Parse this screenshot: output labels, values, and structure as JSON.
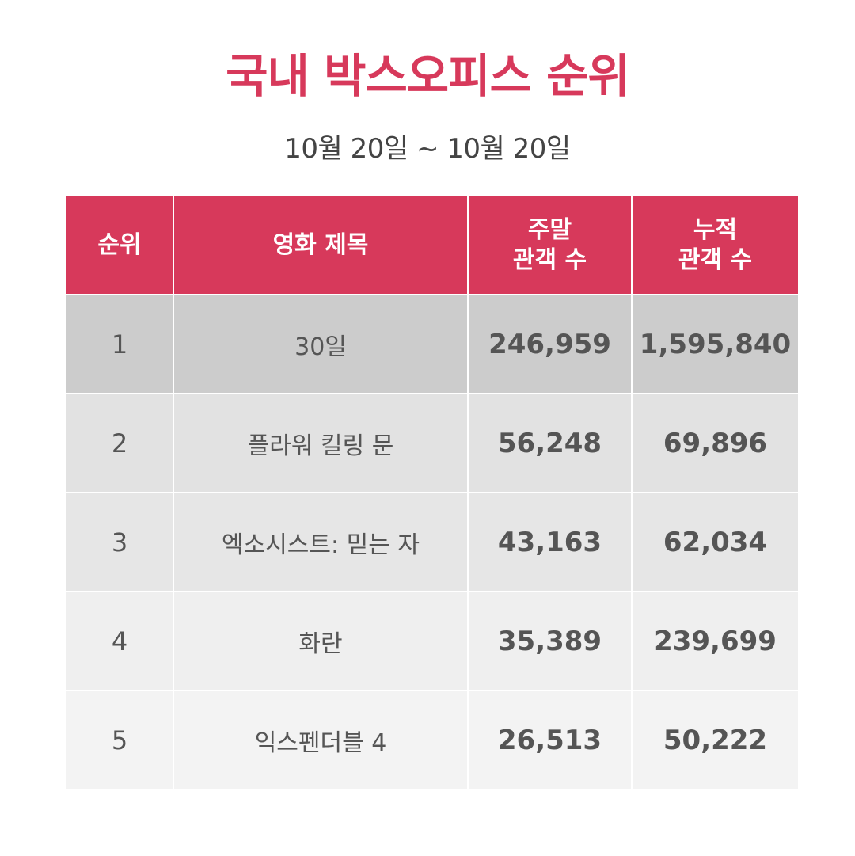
{
  "title": "국내 박스오피스 순위",
  "date_range": "10월 20일 ~ 10월 20일",
  "table": {
    "headers": {
      "rank": "순위",
      "movie_title": "영화 제목",
      "weekend_line1": "주말",
      "weekend_line2": "관객 수",
      "total_line1": "누적",
      "total_line2": "관객 수"
    },
    "rows": [
      {
        "rank": "1",
        "title": "30일",
        "weekend": "246,959",
        "total": "1,595,840"
      },
      {
        "rank": "2",
        "title": "플라워 킬링 문",
        "weekend": "56,248",
        "total": "69,896"
      },
      {
        "rank": "3",
        "title": "엑소시스트: 믿는 자",
        "weekend": "43,163",
        "total": "62,034"
      },
      {
        "rank": "4",
        "title": "화란",
        "weekend": "35,389",
        "total": "239,699"
      },
      {
        "rank": "5",
        "title": "익스펜더블 4",
        "weekend": "26,513",
        "total": "50,222"
      }
    ]
  },
  "colors": {
    "accent": "#d7395b",
    "row1": "#cccccc",
    "row2": "#e2e2e2",
    "row3": "#e6e6e6",
    "row4": "#efefef",
    "row5": "#f3f3f3"
  }
}
